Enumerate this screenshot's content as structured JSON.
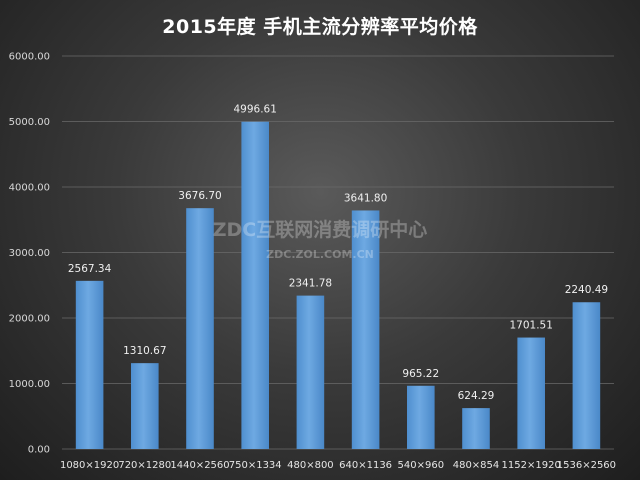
{
  "chart_data": {
    "type": "bar",
    "title": "2015年度 手机主流分辨率平均价格",
    "xlabel": "",
    "ylabel": "",
    "categories": [
      "1080×1920",
      "720×1280",
      "1440×2560",
      "750×1334",
      "480×800",
      "640×1136",
      "540×960",
      "480×854",
      "1152×1920",
      "1536×2560"
    ],
    "values": [
      2567.34,
      1310.67,
      3676.7,
      4996.61,
      2341.78,
      3641.8,
      965.22,
      624.29,
      1701.51,
      2240.49
    ],
    "value_labels": [
      "2567.34",
      "1310.67",
      "3676.70",
      "4996.61",
      "2341.78",
      "3641.80",
      "965.22",
      "624.29",
      "1701.51",
      "2240.49"
    ],
    "ylim": [
      0,
      6000
    ],
    "yticks": [
      0,
      1000,
      2000,
      3000,
      4000,
      5000,
      6000
    ],
    "ytick_labels": [
      "0.00",
      "1000.00",
      "2000.00",
      "3000.00",
      "4000.00",
      "5000.00",
      "6000.00"
    ],
    "grid": true,
    "legend": "none",
    "colors": {
      "bar": "#5b9bd5",
      "bar_light": "#7fb3e6",
      "text": "#ffffff"
    }
  },
  "watermark": {
    "main": "ZDC互联网消费调研中心",
    "sub": "ZDC.ZOL.COM.CN"
  }
}
